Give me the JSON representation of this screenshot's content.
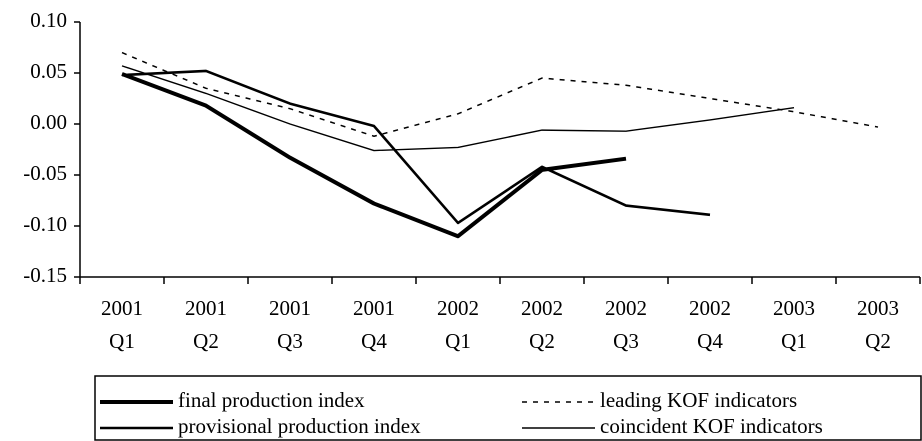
{
  "chart_data": {
    "type": "line",
    "categories": [
      "2001 Q1",
      "2001 Q2",
      "2001 Q3",
      "2001 Q4",
      "2002 Q1",
      "2002 Q2",
      "2002 Q3",
      "2002 Q4",
      "2003 Q1",
      "2003 Q2"
    ],
    "series": [
      {
        "name": "final production index",
        "color": "#000000",
        "width": 4,
        "dashed": false,
        "values": [
          0.049,
          0.018,
          -0.033,
          -0.078,
          -0.11,
          -0.045,
          -0.034,
          null,
          null,
          null
        ]
      },
      {
        "name": "leading KOF indicators",
        "color": "#000000",
        "width": 1.5,
        "dashed": true,
        "values": [
          0.07,
          0.035,
          0.015,
          -0.012,
          0.01,
          0.045,
          0.038,
          0.025,
          0.012,
          -0.003
        ]
      },
      {
        "name": "provisional production index",
        "color": "#000000",
        "width": 2.6,
        "dashed": false,
        "values": [
          0.048,
          0.052,
          0.02,
          -0.002,
          -0.097,
          -0.042,
          -0.08,
          -0.089,
          null,
          null
        ]
      },
      {
        "name": "coincident KOF indicators",
        "color": "#000000",
        "width": 1.4,
        "dashed": false,
        "values": [
          0.057,
          0.03,
          0.0,
          -0.026,
          -0.023,
          -0.006,
          -0.007,
          0.004,
          0.016,
          null
        ]
      }
    ],
    "ylim": [
      -0.15,
      0.1
    ],
    "yticks": [
      {
        "value": 0.1,
        "label": "0.10"
      },
      0.05,
      {
        "value": 0,
        "label": "0.00"
      },
      -0.05,
      {
        "value": -0.1,
        "label": "-0.10"
      },
      -0.15
    ],
    "grid": false
  }
}
